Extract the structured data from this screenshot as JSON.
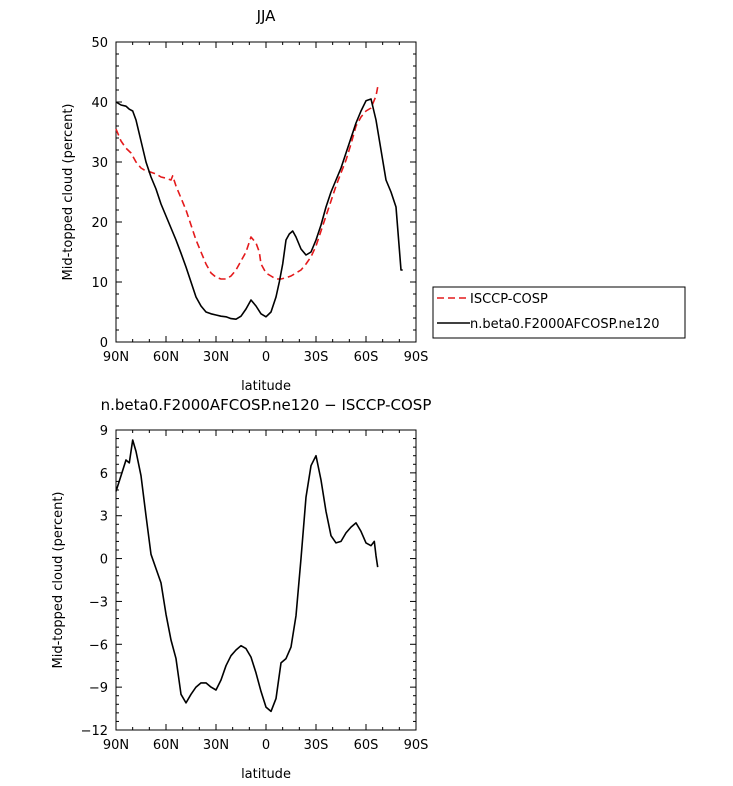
{
  "chart_data": [
    {
      "type": "line",
      "title": "JJA",
      "xlabel": "latitude",
      "ylabel": "Mid-topped cloud (percent)",
      "xlim": [
        -90,
        90
      ],
      "ylim": [
        0,
        50
      ],
      "x_ticks": [
        -90,
        -60,
        -30,
        0,
        30,
        60,
        90
      ],
      "x_tick_labels": [
        "90N",
        "60N",
        "30N",
        "0",
        "30S",
        "60S",
        "90S"
      ],
      "y_ticks": [
        0,
        10,
        20,
        30,
        40,
        50
      ],
      "y_tick_labels": [
        "0",
        "10",
        "20",
        "30",
        "40",
        "50"
      ],
      "legend": {
        "placement": "right",
        "entries": [
          "ISCCP-COSP",
          "n.beta0.F2000AFCOSP.ne120"
        ]
      },
      "series": [
        {
          "name": "ISCCP-COSP",
          "color": "#e41a1c",
          "dash": "dashed",
          "x": [
            -90,
            -87,
            -84,
            -81,
            -78,
            -75,
            -72,
            -69,
            -66,
            -63,
            -60,
            -57,
            -56,
            -54,
            -51,
            -48,
            -45,
            -42,
            -39,
            -36,
            -33,
            -30,
            -27,
            -24,
            -21,
            -18,
            -15,
            -12,
            -9,
            -6,
            -4,
            -3,
            0,
            3,
            6,
            9,
            12,
            15,
            18,
            21,
            24,
            27,
            30,
            33,
            36,
            39,
            42,
            45,
            48,
            51,
            54,
            57,
            60,
            63,
            66,
            67
          ],
          "y": [
            35.5,
            33.5,
            32.3,
            31.5,
            30,
            29,
            28.5,
            28.3,
            28,
            27.5,
            27.3,
            27,
            27.7,
            26,
            24,
            22,
            19.5,
            17,
            15,
            13,
            11.5,
            10.8,
            10.5,
            10.5,
            11,
            12,
            13.5,
            15,
            17.5,
            16.5,
            15,
            13,
            11.5,
            11,
            10.5,
            10.5,
            10.7,
            11,
            11.5,
            12,
            13,
            14.2,
            16,
            18.5,
            21,
            23.5,
            26,
            28.2,
            30.3,
            33,
            36,
            37.5,
            38.5,
            39,
            41,
            42.5
          ]
        },
        {
          "name": "n.beta0.F2000AFCOSP.ne120",
          "color": "#000000",
          "dash": "solid",
          "x": [
            -90,
            -87,
            -84,
            -82,
            -80,
            -78,
            -75,
            -72,
            -69,
            -66,
            -63,
            -60,
            -57,
            -54,
            -51,
            -48,
            -45,
            -42,
            -39,
            -36,
            -33,
            -30,
            -27,
            -24,
            -21,
            -18,
            -15,
            -12,
            -9,
            -6,
            -3,
            0,
            3,
            6,
            8,
            10,
            12,
            14,
            16,
            18,
            21,
            24,
            27,
            30,
            33,
            36,
            39,
            42,
            45,
            48,
            51,
            54,
            57,
            60,
            63,
            66,
            69,
            72,
            75,
            78,
            81,
            82
          ],
          "y": [
            40,
            39.5,
            39.3,
            38.8,
            38.5,
            37,
            33.5,
            30,
            27.5,
            25.5,
            23,
            21,
            19,
            17,
            14.8,
            12.5,
            10,
            7.5,
            6,
            5,
            4.7,
            4.5,
            4.3,
            4.2,
            3.9,
            3.8,
            4.3,
            5.5,
            7,
            6,
            4.7,
            4.2,
            5,
            7.5,
            10,
            13,
            17,
            18,
            18.5,
            17.5,
            15.5,
            14.5,
            15,
            17,
            19.5,
            22.5,
            25,
            27,
            29,
            31.5,
            34,
            36.5,
            38.5,
            40.2,
            40.5,
            37,
            32,
            27,
            25,
            22.5,
            12,
            12
          ]
        }
      ]
    },
    {
      "type": "line",
      "title": "n.beta0.F2000AFCOSP.ne120 − ISCCP-COSP",
      "xlabel": "latitude",
      "ylabel": "Mid-topped cloud (percent)",
      "xlim": [
        -90,
        90
      ],
      "ylim": [
        -12,
        9
      ],
      "x_ticks": [
        -90,
        -60,
        -30,
        0,
        30,
        60,
        90
      ],
      "x_tick_labels": [
        "90N",
        "60N",
        "30N",
        "0",
        "30S",
        "60S",
        "90S"
      ],
      "y_ticks": [
        -12,
        -9,
        -6,
        -3,
        0,
        3,
        6,
        9
      ],
      "y_tick_labels": [
        "−12",
        "−9",
        "−6",
        "−3",
        "0",
        "3",
        "6",
        "9"
      ],
      "series": [
        {
          "name": "difference",
          "color": "#000000",
          "dash": "solid",
          "x": [
            -90,
            -87,
            -84,
            -82,
            -80,
            -78,
            -75,
            -72,
            -69,
            -66,
            -63,
            -60,
            -57,
            -54,
            -51,
            -48,
            -45,
            -42,
            -39,
            -36,
            -33,
            -30,
            -27,
            -24,
            -21,
            -18,
            -15,
            -12,
            -9,
            -6,
            -3,
            0,
            3,
            6,
            9,
            12,
            15,
            18,
            21,
            24,
            27,
            30,
            33,
            36,
            39,
            42,
            45,
            48,
            51,
            54,
            57,
            60,
            63,
            65,
            66,
            67
          ],
          "y": [
            4.7,
            5.8,
            6.9,
            6.7,
            8.3,
            7.5,
            5.8,
            3,
            0.3,
            -0.7,
            -1.7,
            -3.9,
            -5.7,
            -7,
            -9.5,
            -10.1,
            -9.5,
            -9,
            -8.7,
            -8.7,
            -9,
            -9.2,
            -8.5,
            -7.5,
            -6.8,
            -6.4,
            -6.1,
            -6.3,
            -6.9,
            -8,
            -9.3,
            -10.4,
            -10.7,
            -9.8,
            -7.3,
            -7,
            -6.2,
            -4,
            0,
            4.3,
            6.5,
            7.2,
            5.5,
            3.3,
            1.6,
            1.1,
            1.2,
            1.8,
            2.2,
            2.5,
            1.9,
            1.1,
            0.9,
            1.2,
            0.2,
            -0.6
          ]
        }
      ]
    }
  ]
}
